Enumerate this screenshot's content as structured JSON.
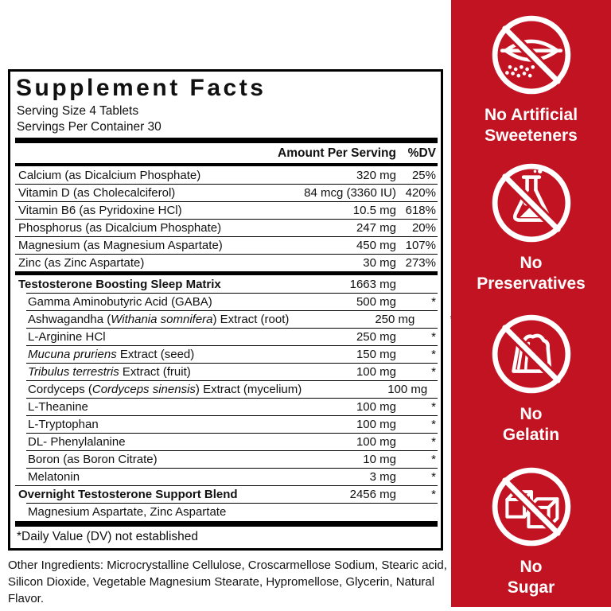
{
  "panel": {
    "title": "Supplement Facts",
    "serving_size": "Serving Size 4 Tablets",
    "servings_per_container": "Servings Per Container 30",
    "columns": {
      "amount": "Amount Per Serving",
      "dv": "%DV"
    },
    "rows": [
      {
        "type": "nutrient",
        "name": [
          {
            "t": "Calcium (as Dicalcium Phosphate)"
          }
        ],
        "amount": "320 mg",
        "dv": "25%"
      },
      {
        "type": "nutrient",
        "name": [
          {
            "t": "Vitamin D (as Cholecalciferol)"
          }
        ],
        "amount": "84 mcg (3360 IU)",
        "dv": "420%"
      },
      {
        "type": "nutrient",
        "name": [
          {
            "t": "Vitamin B6 (as Pyridoxine HCl)"
          }
        ],
        "amount": "10.5 mg",
        "dv": "618%"
      },
      {
        "type": "nutrient",
        "name": [
          {
            "t": "Phosphorus (as Dicalcium Phosphate)"
          }
        ],
        "amount": "247 mg",
        "dv": "20%"
      },
      {
        "type": "nutrient",
        "name": [
          {
            "t": "Magnesium (as Magnesium Aspartate)"
          }
        ],
        "amount": "450 mg",
        "dv": "107%"
      },
      {
        "type": "nutrient",
        "name": [
          {
            "t": "Zinc (as Zinc Aspartate)"
          }
        ],
        "amount": "30 mg",
        "dv": "273%"
      },
      {
        "type": "bar",
        "h": 5
      },
      {
        "type": "section",
        "name": [
          {
            "t": "Testosterone Boosting Sleep Matrix"
          }
        ],
        "amount": "1663 mg",
        "dv": ""
      },
      {
        "type": "sub",
        "name": [
          {
            "t": "Gamma Aminobutyric Acid (GABA)"
          }
        ],
        "amount": "500 mg",
        "dv": "*"
      },
      {
        "type": "sub",
        "name": [
          {
            "t": "Ashwagandha ("
          },
          {
            "t": "Withania somnifera",
            "i": true
          },
          {
            "t": ") Extract (root)"
          }
        ],
        "amount": "250 mg",
        "dv": "*"
      },
      {
        "type": "sub",
        "name": [
          {
            "t": "L-Arginine HCl"
          }
        ],
        "amount": "250 mg",
        "dv": "*"
      },
      {
        "type": "sub",
        "name": [
          {
            "t": "Mucuna pruriens",
            "i": true
          },
          {
            "t": " Extract (seed)"
          }
        ],
        "amount": "150 mg",
        "dv": "*"
      },
      {
        "type": "sub",
        "name": [
          {
            "t": "Tribulus terrestris",
            "i": true
          },
          {
            "t": " Extract (fruit)"
          }
        ],
        "amount": "100 mg",
        "dv": "*"
      },
      {
        "type": "sub",
        "name": [
          {
            "t": "Cordyceps ("
          },
          {
            "t": "Cordyceps sinensis",
            "i": true
          },
          {
            "t": ") Extract (mycelium)"
          }
        ],
        "amount": "100 mg",
        "dv": "*"
      },
      {
        "type": "sub",
        "name": [
          {
            "t": "L-Theanine"
          }
        ],
        "amount": "100 mg",
        "dv": "*"
      },
      {
        "type": "sub",
        "name": [
          {
            "t": "L-Tryptophan"
          }
        ],
        "amount": "100 mg",
        "dv": "*"
      },
      {
        "type": "sub",
        "name": [
          {
            "t": "DL- Phenylalanine"
          }
        ],
        "amount": "100 mg",
        "dv": "*"
      },
      {
        "type": "sub",
        "name": [
          {
            "t": "Boron (as Boron Citrate)"
          }
        ],
        "amount": "10 mg",
        "dv": "*"
      },
      {
        "type": "sub",
        "name": [
          {
            "t": "Melatonin"
          }
        ],
        "amount": "3 mg",
        "dv": "*"
      },
      {
        "type": "section",
        "name": [
          {
            "t": "Overnight Testosterone Support Blend"
          }
        ],
        "amount": "2456 mg",
        "dv": "*"
      },
      {
        "type": "subtext",
        "name": [
          {
            "t": "Magnesium Aspartate, Zinc Aspartate"
          }
        ],
        "amount": "",
        "dv": ""
      }
    ],
    "footnote": "*Daily Value (DV) not established"
  },
  "other_ingredients": "Other Ingredients: Microcrystalline Cellulose, Croscarmellose Sodium, Stearic acid, Silicon Dioxide, Vegetable Magnesium Stearate, Hypromellose, Glycerin, Natural Flavor.",
  "badges": {
    "background": "#C21322",
    "text_color": "#FFFFFF",
    "items": [
      {
        "icon": "no-artificial-sweeteners-icon",
        "label_lines": [
          "No Artificial",
          "Sweeteners"
        ]
      },
      {
        "icon": "no-preservatives-icon",
        "label_lines": [
          "No",
          "Preservatives"
        ]
      },
      {
        "icon": "no-gelatin-icon",
        "label_lines": [
          "No",
          "Gelatin"
        ]
      },
      {
        "icon": "no-sugar-icon",
        "label_lines": [
          "No",
          "Sugar"
        ]
      }
    ]
  }
}
